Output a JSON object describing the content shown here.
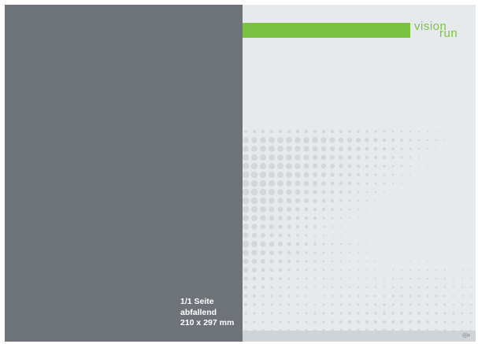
{
  "ad_format": {
    "line1": "1/1 Seite",
    "line2": "abfallend",
    "line3": "210 x 297 mm"
  },
  "logo": {
    "word1": "vision",
    "word2": "run"
  },
  "colors": {
    "left_panel": "#6e737a",
    "right_panel": "#e7eaec",
    "green_accent": "#7cc242",
    "dot_color": "#d3d7da"
  },
  "icons": {
    "corner_mark": "arrow-mark-icon"
  }
}
